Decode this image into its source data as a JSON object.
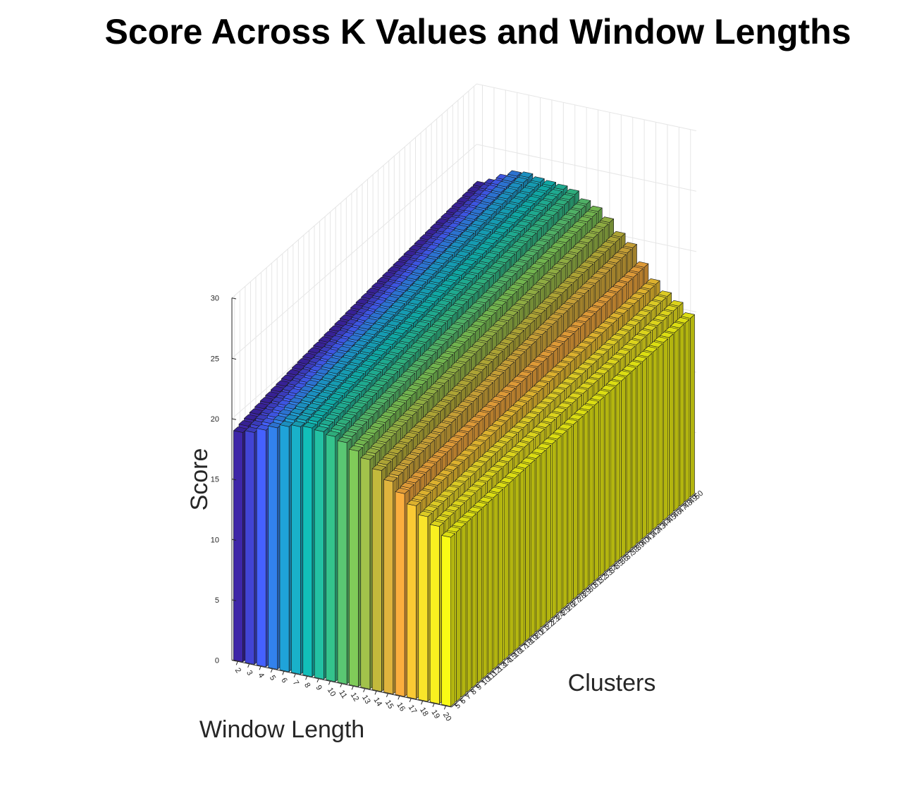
{
  "chart_data": {
    "type": "bar3",
    "title": "Score Across K Values and Window Lengths",
    "xlabel": "Window Length",
    "ylabel": "Clusters",
    "zlabel": "Score",
    "window_lengths": [
      2,
      3,
      4,
      5,
      6,
      7,
      8,
      9,
      10,
      11,
      12,
      13,
      14,
      15,
      16,
      17,
      18,
      19,
      20
    ],
    "clusters": [
      5,
      6,
      7,
      8,
      9,
      10,
      11,
      12,
      13,
      14,
      15,
      16,
      17,
      18,
      19,
      20,
      21,
      22,
      23,
      24,
      25,
      26,
      27,
      28,
      29,
      30,
      31,
      32,
      33,
      34,
      35,
      36,
      37,
      38,
      39,
      40,
      41,
      42,
      43,
      44,
      45,
      46,
      47,
      48,
      49,
      50
    ],
    "cluster_tick_labels": [
      "50",
      "49",
      "48",
      "47",
      "46",
      "45",
      "44",
      "43",
      "42",
      "41",
      "40",
      "39",
      "38",
      "37",
      "36",
      "35",
      "34",
      "33",
      "32",
      "31",
      "30",
      "29",
      "28",
      "27",
      "26",
      "25",
      "24",
      "23",
      "22",
      "21",
      "20",
      "19",
      "18",
      "17",
      "16",
      "15",
      "14",
      "13",
      "12",
      "11",
      "10",
      "9",
      "8",
      "7",
      "6",
      "5"
    ],
    "zlim": [
      0,
      30
    ],
    "z_ticks": [
      "0",
      "5",
      "10",
      "15",
      "20",
      "25",
      "30"
    ],
    "front_scores_k50": [
      22.0,
      22.4,
      23.0,
      23.5,
      23.6,
      23.4,
      23.3,
      23.2,
      23.0,
      22.4,
      22.0,
      21.3,
      20.3,
      19.6,
      18.2,
      17.0,
      16.2,
      15.6,
      14.8
    ],
    "back_scores_k5": [
      19.0,
      19.2,
      19.6,
      20.0,
      20.3,
      20.5,
      20.6,
      20.5,
      20.3,
      20.0,
      19.5,
      19.0,
      18.3,
      17.6,
      16.8,
      16.0,
      15.3,
      14.7,
      14.0
    ],
    "colormap": [
      "#3e26a8",
      "#4561ff",
      "#1fa3d9",
      "#12beb9",
      "#34c38c",
      "#80cb59",
      "#c3b93c",
      "#fbae3e",
      "#f9e52a",
      "#f9fb15"
    ]
  }
}
